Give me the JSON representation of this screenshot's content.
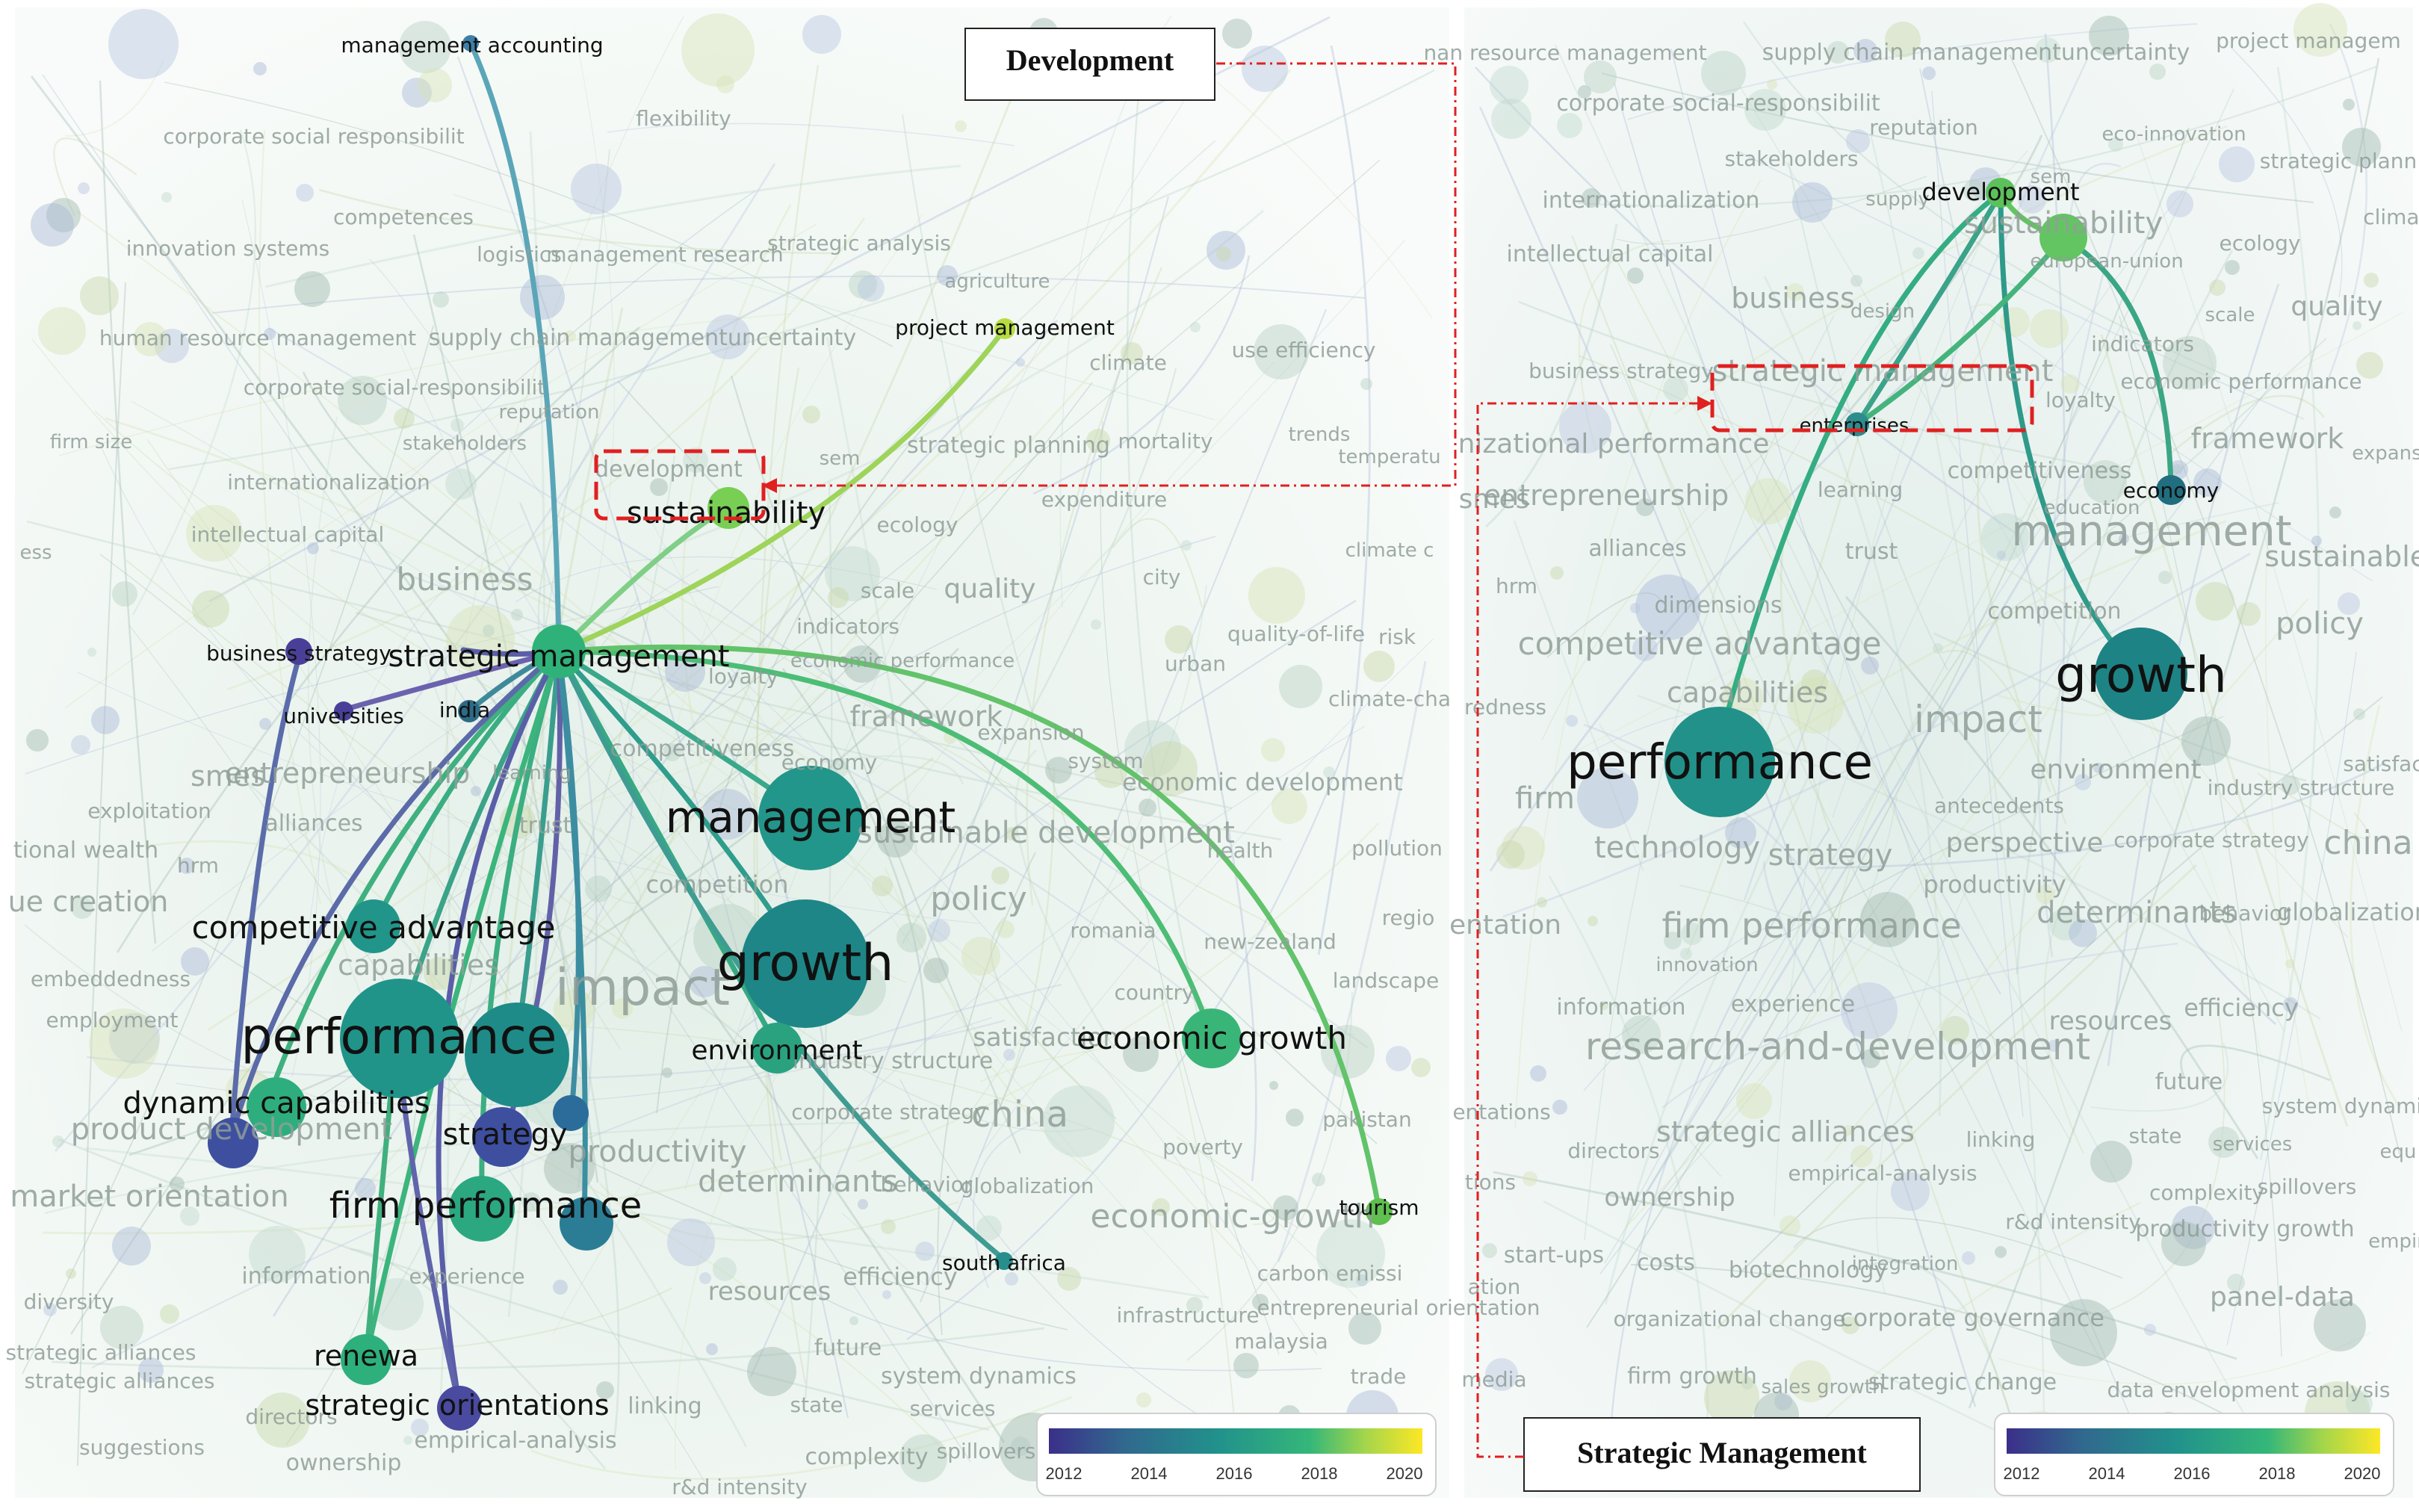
{
  "callouts": {
    "development": "Development",
    "strategic_management": "Strategic Management"
  },
  "colorbar": {
    "ticks": [
      "2012",
      "2014",
      "2016",
      "2018",
      "2020"
    ],
    "stops": [
      "#3b2f8a",
      "#31688e",
      "#21918c",
      "#35b779",
      "#a6d64a",
      "#fde725"
    ]
  },
  "left_map": {
    "labels": [
      "management accounting",
      "flexibility",
      "corporate social responsibilit",
      "competences",
      "innovation systems",
      "logistics",
      "management research",
      "strategic analysis",
      "agriculture",
      "project management",
      "human resource management",
      "supply chain managementuncertainty",
      "climate",
      "use efficiency",
      "corporate social-responsibilit",
      "reputation",
      "firm size",
      "stakeholders",
      "development",
      "sem",
      "strategic planning",
      "mortality",
      "trends",
      "temperatu",
      "internationalization",
      "sustainability",
      "expenditure",
      "intellectual capital",
      "ecology",
      "climate c",
      "ess",
      "business",
      "scale",
      "quality",
      "city",
      "indicators",
      "quality-of-life",
      "risk",
      "business strategy",
      "strategic management",
      "loyalty",
      "economic performance",
      "urban",
      "universities",
      "india",
      "climate-cha",
      "framework",
      "expansion",
      "competitiveness",
      "smes",
      "entrepreneurship",
      "learning",
      "economy",
      "system",
      "economic development",
      "exploitation",
      "trust",
      "alliances",
      "tional wealth",
      "hrm",
      "management",
      "sustainable development",
      "health",
      "pollution",
      "ue creation",
      "competition",
      "policy",
      "competitive advantage",
      "regio",
      "capabilities",
      "romania",
      "new-zealand",
      "embeddedness",
      "growth",
      "landscape",
      "employment",
      "impact",
      "country",
      "performance",
      "satisfaction",
      "environment",
      "industry structure",
      "economic growth",
      "dynamic capabilities",
      "product development",
      "corporate strategy",
      "china",
      "pakistan",
      "strategy",
      "productivity",
      "market orientation",
      "poverty",
      "determinants",
      "behavior",
      "globalization",
      "firm performance",
      "economic-growth",
      "tourism",
      "diversity",
      "experience",
      "information",
      "south africa",
      "resources",
      "efficiency",
      "carbon emissi",
      "infrastructure",
      "renewa",
      "entrepreneurial orientation",
      "malaysia",
      "future",
      "system dynamics",
      "trade",
      "strategic orientations",
      "strategic alliances",
      "linking",
      "state",
      "services",
      "directors",
      "empirical-analysis",
      "suggestions",
      "complexity",
      "spillovers",
      "ownership",
      "r&d intensity"
    ]
  },
  "right_map": {
    "labels": [
      "nan resource management",
      "supply chain managementuncertainty",
      "project managem",
      "corporate social-responsibilit",
      "reputation",
      "stakeholders",
      "eco-innovation",
      "strategic plann",
      "internationalization",
      "supply",
      "sem",
      "development",
      "sustainability",
      "intellectual capital",
      "ecology",
      "climate",
      "business",
      "design",
      "european-union",
      "quality",
      "scale",
      "indicators",
      "business strategy",
      "strategic management",
      "loyalty",
      "economic performance",
      "enterprises",
      "framework",
      "expans",
      "nizational performance",
      "competitiveness",
      "economy",
      "smes",
      "entrepreneurship",
      "learning",
      "education",
      "management",
      "sustainable de",
      "alliances",
      "trust",
      "hrm",
      "dimensions",
      "competition",
      "policy",
      "competitive advantage",
      "capabilities",
      "satisfac",
      "redness",
      "growth",
      "impact",
      "performance",
      "environment",
      "industry structure",
      "firm",
      "antecedents",
      "technology",
      "strategy",
      "perspective",
      "corporate strategy",
      "china",
      "productivity",
      "entation",
      "firm performance",
      "determinants",
      "behavior",
      "globalization",
      "innovation",
      "information",
      "experience",
      "efficiency",
      "resources",
      "research-and-development",
      "future",
      "entations",
      "system dynamics",
      "directors",
      "strategic alliances",
      "linking",
      "state",
      "services",
      "equ",
      "tions",
      "empirical-analysis",
      "complexity",
      "spillovers",
      "ownership",
      "r&d intensity",
      "productivity growth",
      "empir",
      "start-ups",
      "costs",
      "biotechnology",
      "integration",
      "ation",
      "organizational change",
      "corporate governance",
      "panel-data",
      "media",
      "firm growth",
      "sales growth",
      "strategic change",
      "data envelopment analysis"
    ]
  }
}
